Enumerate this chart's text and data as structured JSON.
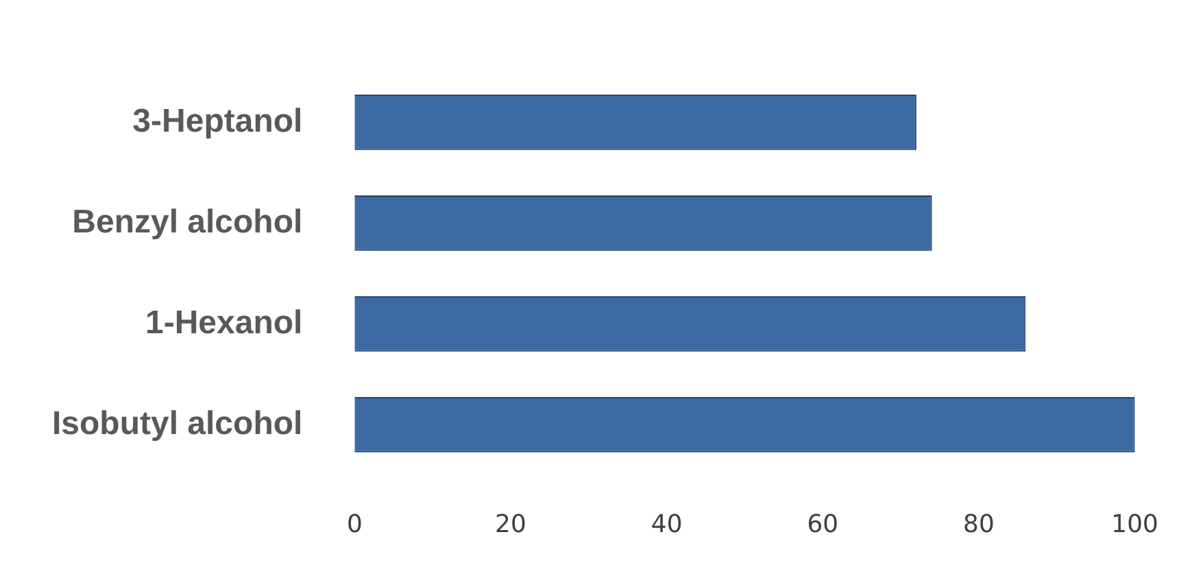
{
  "chart_data": {
    "type": "bar",
    "orientation": "horizontal",
    "categories": [
      "3-Heptanol",
      "Benzyl alcohol",
      "1-Hexanol",
      "Isobutyl alcohol"
    ],
    "values": [
      72,
      74,
      86,
      100
    ],
    "color": "#3b6aa3",
    "xlim": [
      0,
      100
    ],
    "xticks": [
      0,
      20,
      40,
      60,
      80,
      100
    ],
    "grid": false,
    "legend": false
  }
}
